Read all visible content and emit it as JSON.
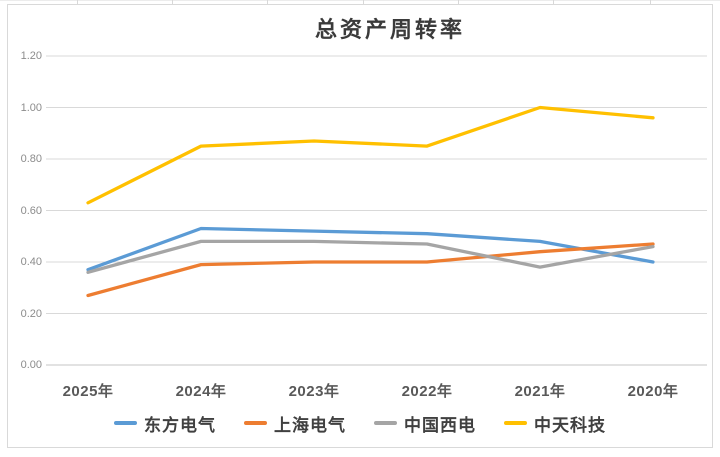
{
  "chart_data": {
    "type": "line",
    "title": "总资产周转率",
    "categories": [
      "2025年",
      "2024年",
      "2023年",
      "2022年",
      "2021年",
      "2020年"
    ],
    "series": [
      {
        "name": "东方电气",
        "color": "#5B9BD5",
        "values": [
          0.37,
          0.53,
          0.52,
          0.51,
          0.48,
          0.4
        ]
      },
      {
        "name": "上海电气",
        "color": "#ED7D31",
        "values": [
          0.27,
          0.39,
          0.4,
          0.4,
          0.44,
          0.47
        ]
      },
      {
        "name": "中国西电",
        "color": "#A5A5A5",
        "values": [
          0.36,
          0.48,
          0.48,
          0.47,
          0.38,
          0.46
        ]
      },
      {
        "name": "中天科技",
        "color": "#FFC000",
        "values": [
          0.63,
          0.85,
          0.87,
          0.85,
          1.0,
          0.96
        ]
      }
    ],
    "y_axis": {
      "min": 0.0,
      "max": 1.2,
      "step": 0.2,
      "tick_labels": [
        "0.00",
        "0.20",
        "0.40",
        "0.60",
        "0.80",
        "1.00",
        "1.20"
      ]
    },
    "grid": true,
    "legend_position": "bottom",
    "colors": {
      "gridline": "#d9d9d9",
      "baseline": "#c6c6c6",
      "title_text": "#3b3b3b",
      "x_label_text": "#595959",
      "y_tick_text": "#8c8c8c"
    }
  }
}
